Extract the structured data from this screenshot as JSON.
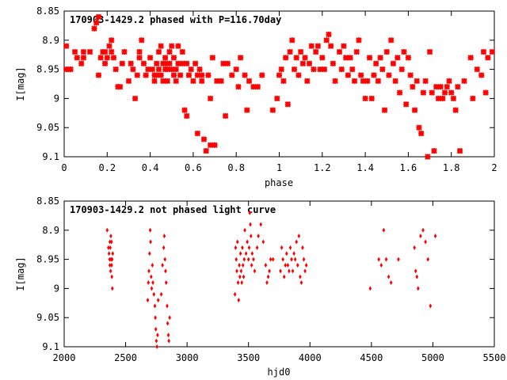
{
  "colors": {
    "points": "#ff0000",
    "frame": "#000000",
    "background": "#ffffff"
  },
  "chart_data": [
    {
      "type": "scatter",
      "title": "170903-1429.2 phased with P=116.70day",
      "xlabel": "phase",
      "ylabel": "I[mag]",
      "xlim": [
        0,
        2
      ],
      "ylim": [
        8.85,
        9.1
      ],
      "y_inverted": true,
      "grid": false,
      "legend": "none",
      "marker": "cross",
      "x_ticks": [
        "0",
        "0.2",
        "0.4",
        "0.6",
        "0.8",
        "1",
        "1.2",
        "1.4",
        "1.6",
        "1.8",
        "2"
      ],
      "y_ticks": [
        "8.85",
        "8.9",
        "8.95",
        "9",
        "9.05",
        "9.1"
      ],
      "points": [
        [
          0.01,
          8.91
        ],
        [
          0.01,
          8.95
        ],
        [
          0.03,
          8.95
        ],
        [
          0.05,
          8.92
        ],
        [
          0.06,
          8.93
        ],
        [
          0.08,
          8.94
        ],
        [
          0.09,
          8.92
        ],
        [
          0.12,
          8.92
        ],
        [
          0.15,
          8.87
        ],
        [
          0.16,
          8.86
        ],
        [
          0.14,
          8.88
        ],
        [
          0.16,
          8.96
        ],
        [
          0.17,
          8.93
        ],
        [
          0.18,
          8.92
        ],
        [
          0.19,
          8.94
        ],
        [
          0.2,
          8.93
        ],
        [
          0.21,
          8.91
        ],
        [
          0.22,
          8.9
        ],
        [
          0.22,
          8.92
        ],
        [
          0.23,
          8.93
        ],
        [
          0.24,
          8.95
        ],
        [
          0.25,
          8.98
        ],
        [
          0.26,
          8.98
        ],
        [
          0.27,
          8.94
        ],
        [
          0.28,
          8.92
        ],
        [
          0.3,
          8.97
        ],
        [
          0.31,
          8.94
        ],
        [
          0.32,
          8.95
        ],
        [
          0.33,
          9.0
        ],
        [
          0.34,
          8.96
        ],
        [
          0.35,
          8.93
        ],
        [
          0.36,
          8.9
        ],
        [
          0.37,
          8.94
        ],
        [
          0.38,
          8.96
        ],
        [
          0.39,
          8.95
        ],
        [
          0.4,
          8.93
        ],
        [
          0.41,
          8.95
        ],
        [
          0.42,
          8.96
        ],
        [
          0.42,
          8.97
        ],
        [
          0.43,
          8.94
        ],
        [
          0.43,
          8.96
        ],
        [
          0.44,
          8.95
        ],
        [
          0.44,
          8.92
        ],
        [
          0.45,
          8.91
        ],
        [
          0.45,
          8.96
        ],
        [
          0.46,
          8.94
        ],
        [
          0.46,
          8.97
        ],
        [
          0.47,
          8.95
        ],
        [
          0.47,
          8.93
        ],
        [
          0.48,
          8.95
        ],
        [
          0.48,
          8.97
        ],
        [
          0.49,
          8.92
        ],
        [
          0.49,
          8.94
        ],
        [
          0.5,
          8.91
        ],
        [
          0.5,
          8.95
        ],
        [
          0.51,
          8.96
        ],
        [
          0.51,
          8.93
        ],
        [
          0.52,
          8.95
        ],
        [
          0.52,
          8.97
        ],
        [
          0.53,
          8.94
        ],
        [
          0.53,
          8.91
        ],
        [
          0.54,
          8.96
        ],
        [
          0.55,
          8.94
        ],
        [
          0.56,
          9.02
        ],
        [
          0.57,
          9.03
        ],
        [
          0.57,
          8.94
        ],
        [
          0.58,
          8.96
        ],
        [
          0.59,
          8.95
        ],
        [
          0.6,
          8.97
        ],
        [
          0.61,
          8.94
        ],
        [
          0.62,
          8.96
        ],
        [
          0.62,
          9.06
        ],
        [
          0.63,
          8.95
        ],
        [
          0.64,
          8.97
        ],
        [
          0.64,
          8.96
        ],
        [
          0.65,
          9.07
        ],
        [
          0.66,
          9.09
        ],
        [
          0.67,
          8.96
        ],
        [
          0.68,
          9.0
        ],
        [
          0.68,
          9.08
        ],
        [
          0.69,
          8.93
        ],
        [
          0.7,
          9.08
        ],
        [
          0.71,
          8.97
        ],
        [
          0.73,
          8.97
        ],
        [
          0.74,
          8.94
        ],
        [
          0.75,
          9.03
        ],
        [
          0.76,
          8.94
        ],
        [
          0.78,
          8.96
        ],
        [
          0.8,
          8.95
        ],
        [
          0.81,
          8.98
        ],
        [
          0.82,
          8.93
        ],
        [
          0.84,
          8.96
        ],
        [
          0.85,
          9.02
        ],
        [
          0.86,
          8.97
        ],
        [
          0.88,
          8.98
        ],
        [
          0.9,
          8.98
        ],
        [
          0.92,
          8.96
        ],
        [
          0.97,
          9.02
        ],
        [
          0.99,
          9.0
        ],
        [
          1.0,
          8.96
        ],
        [
          1.01,
          8.95
        ],
        [
          1.02,
          8.97
        ],
        [
          1.03,
          8.93
        ],
        [
          1.04,
          9.01
        ],
        [
          1.05,
          8.92
        ],
        [
          1.06,
          8.9
        ],
        [
          1.07,
          8.95
        ],
        [
          1.08,
          8.93
        ],
        [
          1.09,
          8.96
        ],
        [
          1.1,
          8.92
        ],
        [
          1.11,
          8.94
        ],
        [
          1.12,
          8.93
        ],
        [
          1.13,
          8.97
        ],
        [
          1.14,
          8.94
        ],
        [
          1.15,
          8.91
        ],
        [
          1.16,
          8.95
        ],
        [
          1.17,
          8.92
        ],
        [
          1.18,
          8.91
        ],
        [
          1.19,
          8.95
        ],
        [
          1.2,
          8.93
        ],
        [
          1.21,
          8.95
        ],
        [
          1.22,
          8.9
        ],
        [
          1.23,
          8.89
        ],
        [
          1.24,
          8.91
        ],
        [
          1.25,
          8.94
        ],
        [
          1.26,
          8.97
        ],
        [
          1.28,
          8.92
        ],
        [
          1.29,
          8.95
        ],
        [
          1.3,
          8.91
        ],
        [
          1.31,
          8.93
        ],
        [
          1.32,
          8.96
        ],
        [
          1.33,
          8.93
        ],
        [
          1.34,
          8.95
        ],
        [
          1.35,
          8.97
        ],
        [
          1.36,
          8.92
        ],
        [
          1.37,
          8.9
        ],
        [
          1.38,
          8.96
        ],
        [
          1.39,
          8.97
        ],
        [
          1.4,
          9.0
        ],
        [
          1.41,
          8.97
        ],
        [
          1.42,
          8.93
        ],
        [
          1.43,
          9.0
        ],
        [
          1.44,
          8.96
        ],
        [
          1.45,
          8.94
        ],
        [
          1.46,
          8.97
        ],
        [
          1.47,
          8.93
        ],
        [
          1.48,
          8.95
        ],
        [
          1.49,
          9.02
        ],
        [
          1.5,
          8.92
        ],
        [
          1.51,
          8.96
        ],
        [
          1.52,
          8.9
        ],
        [
          1.53,
          8.94
        ],
        [
          1.54,
          8.97
        ],
        [
          1.55,
          8.93
        ],
        [
          1.56,
          8.99
        ],
        [
          1.57,
          8.95
        ],
        [
          1.58,
          8.92
        ],
        [
          1.59,
          9.01
        ],
        [
          1.6,
          8.93
        ],
        [
          1.61,
          8.96
        ],
        [
          1.62,
          8.98
        ],
        [
          1.63,
          9.02
        ],
        [
          1.64,
          8.97
        ],
        [
          1.65,
          9.05
        ],
        [
          1.66,
          9.06
        ],
        [
          1.67,
          8.99
        ],
        [
          1.68,
          8.97
        ],
        [
          1.69,
          9.1
        ],
        [
          1.7,
          8.92
        ],
        [
          1.71,
          8.99
        ],
        [
          1.72,
          9.09
        ],
        [
          1.73,
          8.98
        ],
        [
          1.74,
          9.0
        ],
        [
          1.75,
          8.98
        ],
        [
          1.76,
          9.0
        ],
        [
          1.77,
          8.99
        ],
        [
          1.78,
          8.98
        ],
        [
          1.79,
          8.97
        ],
        [
          1.8,
          8.99
        ],
        [
          1.81,
          9.0
        ],
        [
          1.82,
          9.02
        ],
        [
          1.83,
          8.98
        ],
        [
          1.84,
          9.09
        ],
        [
          1.86,
          8.97
        ],
        [
          1.89,
          8.93
        ],
        [
          1.9,
          9.0
        ],
        [
          1.92,
          8.95
        ],
        [
          1.94,
          8.96
        ],
        [
          1.95,
          8.92
        ],
        [
          1.96,
          8.99
        ],
        [
          1.97,
          8.93
        ],
        [
          1.99,
          8.92
        ],
        [
          0.02,
          8.95
        ],
        [
          0.09,
          8.93
        ],
        [
          0.19,
          8.92
        ],
        [
          0.35,
          8.92
        ],
        [
          0.47,
          8.94
        ],
        [
          0.55,
          8.92
        ]
      ]
    },
    {
      "type": "scatter",
      "title": "170903-1429.2 not phased light curve",
      "xlabel": "hjd0",
      "ylabel": "I[mag]",
      "xlim": [
        2000,
        5500
      ],
      "ylim": [
        8.85,
        9.1
      ],
      "y_inverted": true,
      "grid": false,
      "legend": "none",
      "marker": "diamond",
      "x_ticks": [
        "2000",
        "2500",
        "3000",
        "3500",
        "4000",
        "4500",
        "5000",
        "5500"
      ],
      "y_ticks": [
        "8.85",
        "8.9",
        "8.95",
        "9",
        "9.05",
        "9.1"
      ],
      "points": [
        [
          2350,
          8.9
        ],
        [
          2360,
          8.93
        ],
        [
          2365,
          8.94
        ],
        [
          2370,
          8.95
        ],
        [
          2372,
          8.96
        ],
        [
          2375,
          8.93
        ],
        [
          2378,
          8.97
        ],
        [
          2380,
          8.91
        ],
        [
          2382,
          8.95
        ],
        [
          2385,
          8.92
        ],
        [
          2386,
          8.96
        ],
        [
          2388,
          8.98
        ],
        [
          2390,
          8.95
        ],
        [
          2392,
          9.0
        ],
        [
          2395,
          8.94
        ],
        [
          2372,
          8.92
        ],
        [
          2680,
          9.02
        ],
        [
          2685,
          8.99
        ],
        [
          2690,
          8.97
        ],
        [
          2695,
          8.94
        ],
        [
          2700,
          8.9
        ],
        [
          2703,
          8.92
        ],
        [
          2708,
          8.98
        ],
        [
          2712,
          9.0
        ],
        [
          2718,
          8.96
        ],
        [
          2722,
          8.99
        ],
        [
          2730,
          9.01
        ],
        [
          2738,
          9.03
        ],
        [
          2742,
          9.05
        ],
        [
          2746,
          9.07
        ],
        [
          2750,
          9.09
        ],
        [
          2755,
          9.1
        ],
        [
          2760,
          9.08
        ],
        [
          2765,
          9.02
        ],
        [
          2790,
          9.01
        ],
        [
          2800,
          8.96
        ],
        [
          2810,
          8.93
        ],
        [
          2815,
          8.91
        ],
        [
          2820,
          8.95
        ],
        [
          2825,
          8.97
        ],
        [
          2830,
          8.99
        ],
        [
          2838,
          9.03
        ],
        [
          2842,
          9.06
        ],
        [
          2848,
          9.08
        ],
        [
          2852,
          9.09
        ],
        [
          2858,
          9.05
        ],
        [
          3390,
          9.01
        ],
        [
          3395,
          8.93
        ],
        [
          3400,
          8.95
        ],
        [
          3405,
          8.97
        ],
        [
          3410,
          8.92
        ],
        [
          3415,
          8.99
        ],
        [
          3420,
          9.02
        ],
        [
          3425,
          8.96
        ],
        [
          3430,
          8.98
        ],
        [
          3435,
          8.94
        ],
        [
          3440,
          8.97
        ],
        [
          3445,
          8.99
        ],
        [
          3450,
          8.93
        ],
        [
          3455,
          8.96
        ],
        [
          3460,
          8.98
        ],
        [
          3465,
          8.95
        ],
        [
          3470,
          8.9
        ],
        [
          3480,
          8.94
        ],
        [
          3490,
          8.92
        ],
        [
          3500,
          8.95
        ],
        [
          3505,
          8.93
        ],
        [
          3510,
          8.87
        ],
        [
          3515,
          8.89
        ],
        [
          3520,
          8.91
        ],
        [
          3525,
          8.96
        ],
        [
          3530,
          8.94
        ],
        [
          3540,
          8.95
        ],
        [
          3550,
          8.97
        ],
        [
          3570,
          8.93
        ],
        [
          3580,
          8.91
        ],
        [
          3600,
          8.89
        ],
        [
          3620,
          8.92
        ],
        [
          3640,
          8.96
        ],
        [
          3650,
          8.99
        ],
        [
          3660,
          8.98
        ],
        [
          3670,
          8.97
        ],
        [
          3680,
          8.95
        ],
        [
          3700,
          8.95
        ],
        [
          3760,
          8.97
        ],
        [
          3770,
          8.93
        ],
        [
          3780,
          8.95
        ],
        [
          3790,
          8.98
        ],
        [
          3800,
          8.96
        ],
        [
          3810,
          8.94
        ],
        [
          3820,
          8.96
        ],
        [
          3830,
          8.97
        ],
        [
          3840,
          8.93
        ],
        [
          3850,
          8.95
        ],
        [
          3860,
          8.97
        ],
        [
          3870,
          8.94
        ],
        [
          3880,
          8.95
        ],
        [
          3890,
          8.92
        ],
        [
          3900,
          8.96
        ],
        [
          3910,
          8.91
        ],
        [
          3920,
          8.98
        ],
        [
          3930,
          8.99
        ],
        [
          3940,
          8.93
        ],
        [
          3950,
          8.95
        ],
        [
          3960,
          8.97
        ],
        [
          3970,
          8.96
        ],
        [
          4490,
          9.0
        ],
        [
          4560,
          8.95
        ],
        [
          4580,
          8.96
        ],
        [
          4600,
          8.9
        ],
        [
          4620,
          8.95
        ],
        [
          4640,
          8.98
        ],
        [
          4660,
          8.99
        ],
        [
          4720,
          8.95
        ],
        [
          4850,
          8.93
        ],
        [
          4860,
          8.97
        ],
        [
          4870,
          8.98
        ],
        [
          4880,
          9.0
        ],
        [
          4900,
          8.91
        ],
        [
          4920,
          8.9
        ],
        [
          4940,
          8.92
        ],
        [
          4960,
          8.95
        ],
        [
          4980,
          9.03
        ],
        [
          5020,
          8.91
        ]
      ]
    }
  ]
}
